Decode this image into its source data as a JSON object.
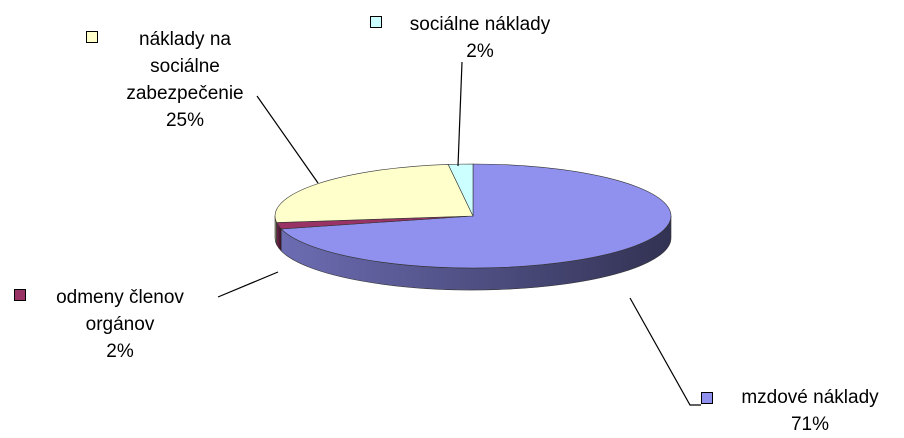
{
  "chart_data": {
    "type": "pie",
    "categories": [
      "mzdové náklady",
      "odmeny členov orgánov",
      "náklady na sociálne zabezpečenie",
      "sociálne náklady"
    ],
    "values": [
      71,
      2,
      25,
      2
    ],
    "value_labels": [
      "71%",
      "2%",
      "25%",
      "2%"
    ],
    "colors": [
      "#9090ee",
      "#993366",
      "#ffffcc",
      "#ccffff"
    ]
  }
}
